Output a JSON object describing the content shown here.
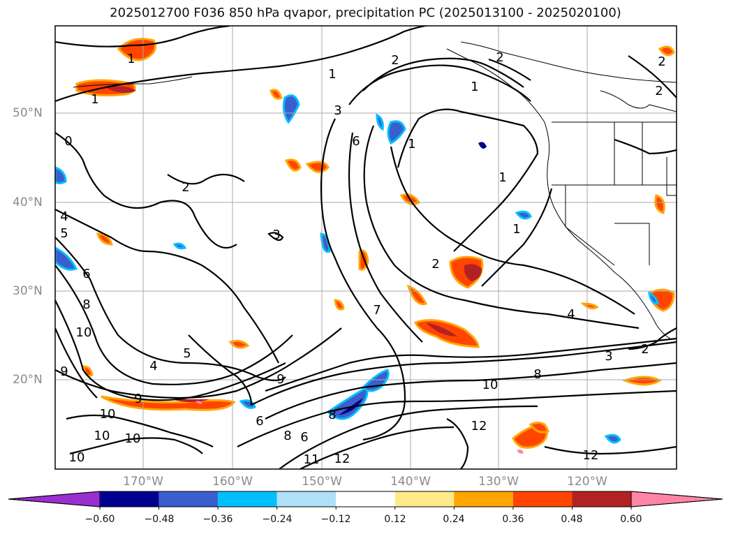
{
  "title": "2025012700 F036 850 hPa qvapor, precipitation PC (2025013100 - 2025020100)",
  "map": {
    "lat_labels": [
      "50°N",
      "40°N",
      "30°N",
      "20°N"
    ],
    "lon_labels": [
      "170°W",
      "160°W",
      "150°W",
      "140°W",
      "130°W",
      "120°W"
    ],
    "contour_labels": [
      {
        "text": "1"
      },
      {
        "text": "1"
      },
      {
        "text": "0"
      },
      {
        "text": "2"
      },
      {
        "text": "4"
      },
      {
        "text": "5"
      },
      {
        "text": "6"
      },
      {
        "text": "8"
      },
      {
        "text": "10"
      },
      {
        "text": "9"
      },
      {
        "text": "9"
      },
      {
        "text": "10"
      },
      {
        "text": "10"
      },
      {
        "text": "10"
      },
      {
        "text": "10"
      },
      {
        "text": "4"
      },
      {
        "text": "5"
      },
      {
        "text": "3"
      },
      {
        "text": "3"
      },
      {
        "text": "6"
      },
      {
        "text": "1"
      },
      {
        "text": "9"
      },
      {
        "text": "6"
      },
      {
        "text": "8"
      },
      {
        "text": "6"
      },
      {
        "text": "7"
      },
      {
        "text": "8"
      },
      {
        "text": "11"
      },
      {
        "text": "12"
      },
      {
        "text": "2"
      },
      {
        "text": "1"
      },
      {
        "text": "1"
      },
      {
        "text": "1"
      },
      {
        "text": "2"
      },
      {
        "text": "4"
      },
      {
        "text": "2"
      },
      {
        "text": "3"
      },
      {
        "text": "8"
      },
      {
        "text": "10"
      },
      {
        "text": "12"
      },
      {
        "text": "12"
      },
      {
        "text": "2"
      },
      {
        "text": "2"
      },
      {
        "text": "2"
      },
      {
        "text": "1"
      }
    ]
  },
  "colorbar": {
    "ticks": [
      "−0.60",
      "−0.48",
      "−0.36",
      "−0.24",
      "−0.12",
      "0.12",
      "0.24",
      "0.36",
      "0.48",
      "0.60"
    ],
    "colors": [
      "#9a2fd0",
      "#000090",
      "#3a5fcd",
      "#00bfff",
      "#b0e0f8",
      "#ffffff",
      "#ffea8a",
      "#ffa500",
      "#ff4500",
      "#b22222",
      "#ff85a6"
    ]
  }
}
